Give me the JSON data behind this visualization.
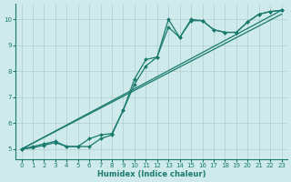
{
  "xlabel": "Humidex (Indice chaleur)",
  "background_color": "#ceeaea",
  "grid_color": "#b0cccc",
  "line_color": "#1a7a6e",
  "xlim": [
    -0.5,
    23.5
  ],
  "ylim": [
    4.6,
    10.6
  ],
  "xticks": [
    0,
    1,
    2,
    3,
    4,
    5,
    6,
    7,
    8,
    9,
    10,
    11,
    12,
    13,
    14,
    15,
    16,
    17,
    18,
    19,
    20,
    21,
    22,
    23
  ],
  "yticks": [
    5,
    6,
    7,
    8,
    9,
    10
  ],
  "lines": [
    {
      "x": [
        0,
        1,
        2,
        3,
        4,
        5,
        6,
        7,
        8,
        9,
        10,
        11,
        12,
        13,
        14,
        15,
        16,
        17,
        18,
        19,
        20,
        21,
        22,
        23
      ],
      "y": [
        5.0,
        5.1,
        5.2,
        5.3,
        5.1,
        5.1,
        5.1,
        5.4,
        5.55,
        6.5,
        7.7,
        8.45,
        8.55,
        10.0,
        9.3,
        10.0,
        9.95,
        9.6,
        9.5,
        9.5,
        9.9,
        10.2,
        10.3,
        10.35
      ]
    },
    {
      "x": [
        0,
        23
      ],
      "y": [
        5.0,
        10.35
      ]
    },
    {
      "x": [
        0,
        23
      ],
      "y": [
        5.0,
        10.2
      ]
    },
    {
      "x": [
        0,
        1,
        2,
        3,
        4,
        5,
        6,
        7,
        8,
        9,
        10,
        11,
        12,
        13,
        14,
        15,
        16,
        17,
        18,
        19,
        20,
        21,
        22,
        23
      ],
      "y": [
        5.0,
        5.05,
        5.15,
        5.25,
        5.1,
        5.1,
        5.4,
        5.55,
        5.6,
        6.5,
        7.5,
        8.2,
        8.55,
        9.7,
        9.3,
        9.95,
        9.95,
        9.6,
        9.5,
        9.5,
        9.9,
        10.2,
        10.3,
        10.35
      ]
    }
  ]
}
